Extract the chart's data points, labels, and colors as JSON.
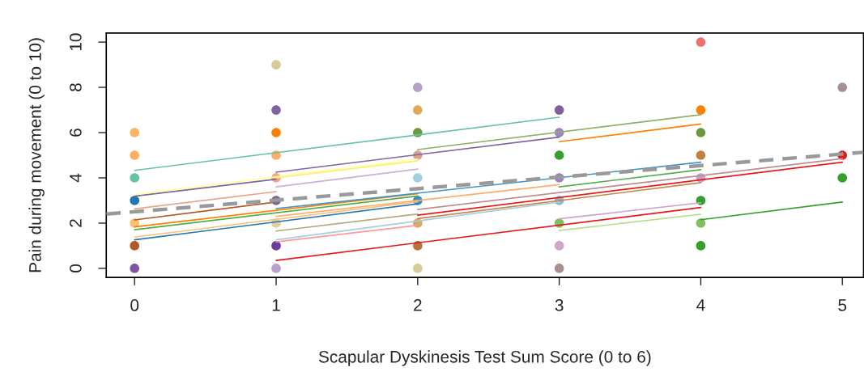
{
  "chart_data": {
    "type": "scatter",
    "xlabel": "Scapular Dyskinesis Test Sum Score (0 to 6)",
    "ylabel": "Pain during movement (0 to 10)",
    "xlim": [
      -0.2,
      5.15
    ],
    "ylim": [
      -0.4,
      10.4
    ],
    "xticks": [
      0,
      1,
      2,
      3,
      4,
      5
    ],
    "yticks": [
      0,
      2,
      4,
      6,
      8,
      10
    ],
    "grid": false,
    "legend": false,
    "series": [
      {
        "type": "line",
        "x": [
          0,
          3
        ],
        "values": [
          4.33,
          6.68
        ],
        "color": "#66c2a5"
      },
      {
        "type": "line",
        "x": [
          0,
          1
        ],
        "values": [
          3.19,
          3.94
        ],
        "color": "#8064a2"
      },
      {
        "type": "line",
        "x": [
          1,
          3
        ],
        "values": [
          4.25,
          5.8
        ],
        "color": "#8064a2"
      },
      {
        "type": "line",
        "x": [
          0,
          2
        ],
        "values": [
          3.26,
          4.83
        ],
        "color": "#ffff99"
      },
      {
        "type": "line",
        "x": [
          1,
          2
        ],
        "values": [
          4.0,
          4.75
        ],
        "color": "#ffed6f"
      },
      {
        "type": "line",
        "x": [
          1,
          2
        ],
        "values": [
          3.6,
          4.39
        ],
        "color": "#cab2d6"
      },
      {
        "type": "line",
        "x": [
          0,
          1
        ],
        "values": [
          2.63,
          3.39
        ],
        "color": "#e5a58a"
      },
      {
        "type": "line",
        "x": [
          0,
          1
        ],
        "values": [
          2.14,
          2.93
        ],
        "color": "#b15928"
      },
      {
        "type": "line",
        "x": [
          0,
          2
        ],
        "values": [
          1.83,
          3.3
        ],
        "color": "#ff7f00"
      },
      {
        "type": "line",
        "x": [
          0,
          2
        ],
        "values": [
          1.71,
          3.2
        ],
        "color": "#4daf4a"
      },
      {
        "type": "line",
        "x": [
          0,
          2
        ],
        "values": [
          1.38,
          2.95
        ],
        "color": "#fdbf6f"
      },
      {
        "type": "line",
        "x": [
          0,
          2
        ],
        "values": [
          1.26,
          2.85
        ],
        "color": "#1f78b4"
      },
      {
        "type": "line",
        "x": [
          1,
          4
        ],
        "values": [
          2.64,
          4.69
        ],
        "color": "#4393c3"
      },
      {
        "type": "line",
        "x": [
          1,
          3
        ],
        "values": [
          2.3,
          3.7
        ],
        "color": "#fdae6b"
      },
      {
        "type": "line",
        "x": [
          1,
          2
        ],
        "values": [
          1.65,
          2.4
        ],
        "color": "#b3a77a"
      },
      {
        "type": "line",
        "x": [
          1,
          3
        ],
        "values": [
          1.26,
          2.93
        ],
        "color": "#a6cee3"
      },
      {
        "type": "line",
        "x": [
          1,
          2
        ],
        "values": [
          1.17,
          1.9
        ],
        "color": "#fb9a99"
      },
      {
        "type": "line",
        "x": [
          1,
          4
        ],
        "values": [
          0.35,
          2.69
        ],
        "color": "#e31a1c"
      },
      {
        "type": "line",
        "x": [
          2,
          4
        ],
        "values": [
          5.25,
          6.79
        ],
        "color": "#8fb06a"
      },
      {
        "type": "line",
        "x": [
          2,
          5
        ],
        "values": [
          2.35,
          4.69
        ],
        "color": "#e31a1c"
      },
      {
        "type": "line",
        "x": [
          2,
          5
        ],
        "values": [
          2.6,
          4.85
        ],
        "color": "#bc8f8f"
      },
      {
        "type": "line",
        "x": [
          2,
          4
        ],
        "values": [
          2.2,
          3.79
        ],
        "color": "#c8874a"
      },
      {
        "type": "line",
        "x": [
          3,
          4
        ],
        "values": [
          5.6,
          6.38
        ],
        "color": "#ff7f00"
      },
      {
        "type": "line",
        "x": [
          3,
          4
        ],
        "values": [
          3.6,
          4.36
        ],
        "color": "#4daf4a"
      },
      {
        "type": "line",
        "x": [
          3,
          4
        ],
        "values": [
          2.19,
          2.9
        ],
        "color": "#cca6cc"
      },
      {
        "type": "line",
        "x": [
          3,
          4
        ],
        "values": [
          1.67,
          2.39
        ],
        "color": "#b2df8a"
      },
      {
        "type": "line",
        "x": [
          4,
          5
        ],
        "values": [
          2.15,
          2.93
        ],
        "color": "#33a02c"
      },
      {
        "type": "line",
        "x": [
          -0.2,
          5.15
        ],
        "values": [
          2.4,
          5.13
        ],
        "color": "#999999",
        "line_style": "dashed"
      },
      {
        "marker": "circle",
        "x": [
          0,
          0,
          0,
          0,
          0,
          0,
          0,
          1,
          1,
          1,
          1,
          1,
          1,
          1,
          1,
          1,
          2,
          2,
          2,
          2,
          2,
          2,
          2,
          2,
          2,
          3,
          3,
          3,
          3,
          3,
          3,
          3,
          3,
          4,
          4,
          4,
          4,
          4,
          4,
          4,
          4,
          5,
          5,
          5
        ],
        "values": [
          6,
          5,
          4,
          3,
          2,
          1,
          0,
          9,
          7,
          6,
          5,
          4,
          3,
          2,
          1,
          0,
          8,
          7,
          6,
          5,
          4,
          3,
          2,
          1,
          0,
          7,
          6,
          5,
          4,
          3,
          2,
          1,
          0,
          10,
          7,
          6,
          5,
          4,
          3,
          2,
          1,
          8,
          5,
          4
        ],
        "colors": [
          "#fdb462",
          "#fdae61",
          "#66c2a5",
          "#1f78b4",
          "#fdbf6f",
          "#b15928",
          "#7e57a4",
          "#d9c89b",
          "#8064a2",
          "#ff7f00",
          "#fdae61",
          "#f4a582",
          "#8064a2",
          "#e0d09a",
          "#6a3d9a",
          "#b9a0cc",
          "#b8a0cc",
          "#ddaa5a",
          "#6b9a3e",
          "#d9a08e",
          "#a6cee3",
          "#3a8fc0",
          "#dca85a",
          "#b8743a",
          "#d8cb98",
          "#80609a",
          "#9b85c0",
          "#33a02c",
          "#9b85c0",
          "#8ab8d8",
          "#7fbf5f",
          "#cda6c8",
          "#a89090",
          "#f07070",
          "#ff7f00",
          "#6b9a3e",
          "#c08040",
          "#c8a0c8",
          "#33a02c",
          "#80c060",
          "#33a02c",
          "#a89090",
          "#e31a1c",
          "#33a02c"
        ]
      }
    ]
  }
}
